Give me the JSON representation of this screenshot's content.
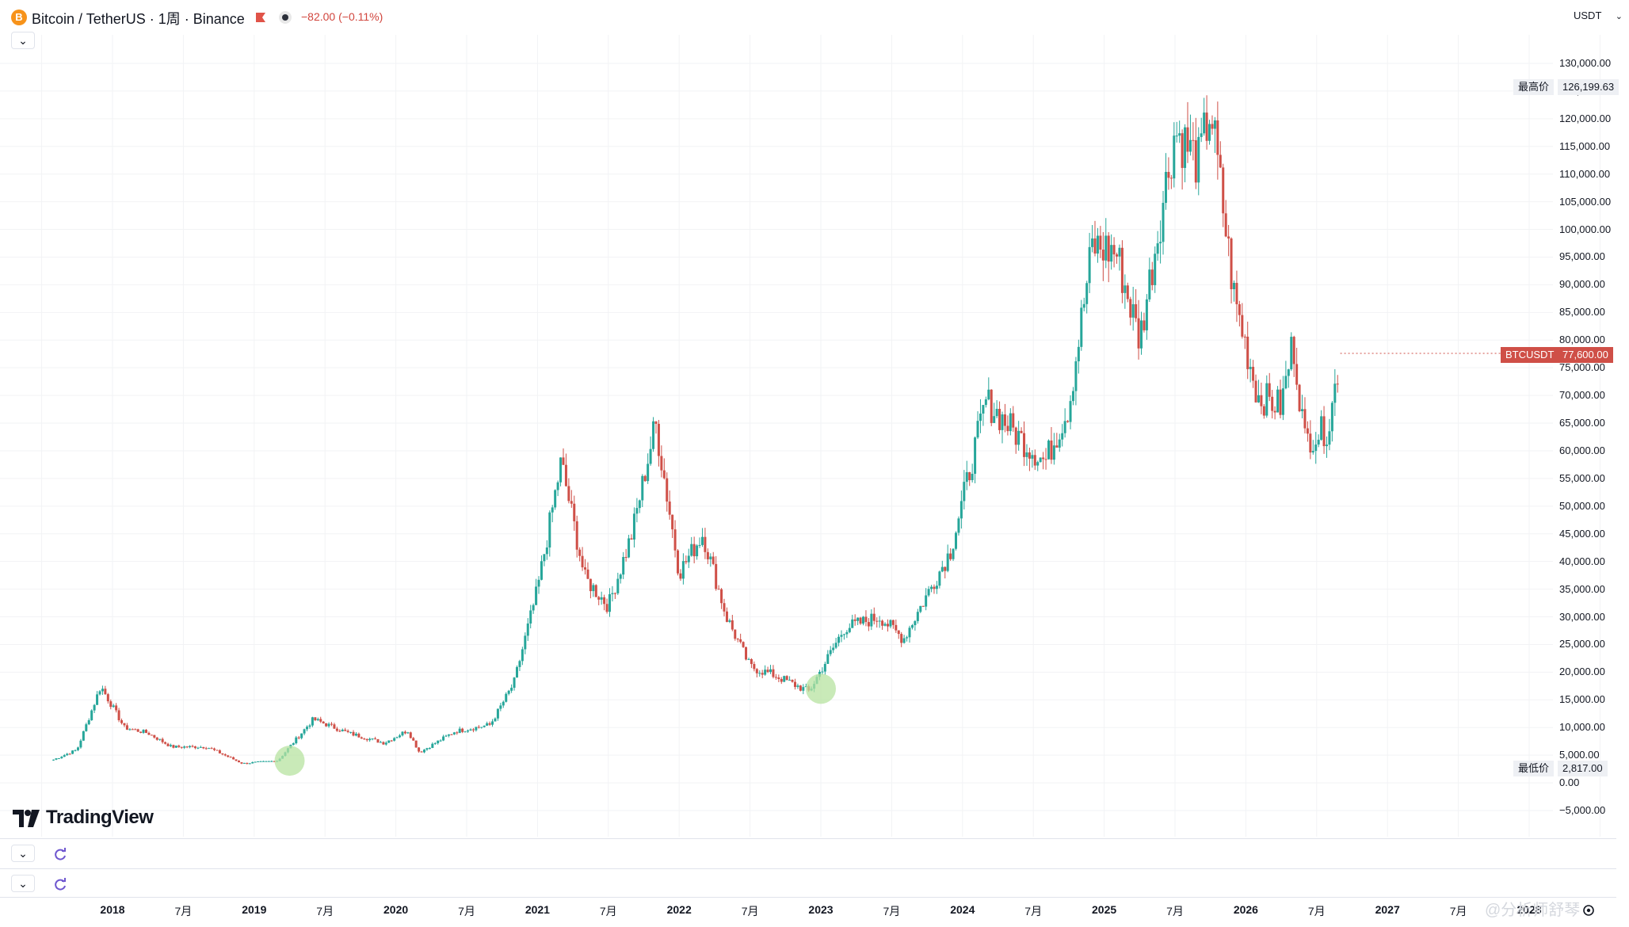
{
  "header": {
    "coin_letter": "B",
    "symbol_title": "Bitcoin / TetherUS · 1周 · Binance",
    "price_change": "−82.00 (−0.11%)",
    "currency": "USDT"
  },
  "price_labels": {
    "high_name": "最高价",
    "high_value": "126,199.63",
    "low_name": "最低价",
    "low_value": "2,817.00",
    "current_symbol": "BTCUSDT",
    "current_value": "77,600.00"
  },
  "brand": {
    "logo_text": "TradingView"
  },
  "watermark": "@分析师舒琴",
  "colors": {
    "up": "#26a69a",
    "down": "#cf4f47",
    "highlight": "#b7e3a0"
  },
  "chart_data": {
    "type": "candlestick",
    "y_unit": "USDT",
    "ylim": [
      -5000,
      130000
    ],
    "y_ticks": [
      "130,000.00",
      "125,000.00",
      "120,000.00",
      "115,000.00",
      "110,000.00",
      "105,000.00",
      "100,000.00",
      "95,000.00",
      "90,000.00",
      "85,000.00",
      "80,000.00",
      "75,000.00",
      "70,000.00",
      "65,000.00",
      "60,000.00",
      "55,000.00",
      "50,000.00",
      "45,000.00",
      "40,000.00",
      "35,000.00",
      "30,000.00",
      "25,000.00",
      "20,000.00",
      "15,000.00",
      "10,000.00",
      "5,000.00",
      "0.00",
      "−5,000.00"
    ],
    "x_ticks": [
      "2018",
      "7月",
      "2019",
      "7月",
      "2020",
      "7月",
      "2021",
      "7月",
      "2022",
      "7月",
      "2023",
      "7月",
      "2024",
      "7月",
      "2025",
      "7月",
      "2026",
      "7月",
      "2027",
      "7月",
      "2028"
    ],
    "price_path": [
      [
        "2017-08",
        4200
      ],
      [
        "2017-10",
        6000
      ],
      [
        "2017-12",
        17500
      ],
      [
        "2018-02",
        10000
      ],
      [
        "2018-04",
        9000
      ],
      [
        "2018-06",
        6500
      ],
      [
        "2018-09",
        6500
      ],
      [
        "2018-12",
        3500
      ],
      [
        "2019-03",
        4000
      ],
      [
        "2019-06",
        11500
      ],
      [
        "2019-09",
        9000
      ],
      [
        "2019-12",
        7200
      ],
      [
        "2020-02",
        9500
      ],
      [
        "2020-03",
        5500
      ],
      [
        "2020-06",
        9300
      ],
      [
        "2020-09",
        10500
      ],
      [
        "2020-11",
        18000
      ],
      [
        "2021-01",
        35000
      ],
      [
        "2021-03",
        58000
      ],
      [
        "2021-05",
        37000
      ],
      [
        "2021-07",
        32000
      ],
      [
        "2021-09",
        45000
      ],
      [
        "2021-11",
        65000
      ],
      [
        "2022-01",
        38000
      ],
      [
        "2022-03",
        45000
      ],
      [
        "2022-05",
        30000
      ],
      [
        "2022-07",
        21000
      ],
      [
        "2022-09",
        19500
      ],
      [
        "2022-12",
        16500
      ],
      [
        "2023-03",
        28000
      ],
      [
        "2023-06",
        30000
      ],
      [
        "2023-08",
        26000
      ],
      [
        "2023-10",
        34000
      ],
      [
        "2023-12",
        42000
      ],
      [
        "2024-03",
        69000
      ],
      [
        "2024-06",
        62000
      ],
      [
        "2024-08",
        58000
      ],
      [
        "2024-10",
        68000
      ],
      [
        "2024-12",
        97000
      ],
      [
        "2025-02",
        96000
      ],
      [
        "2025-04",
        80000
      ],
      [
        "2025-07",
        118000
      ],
      [
        "2025-09",
        112000
      ],
      [
        "2025-10",
        122000
      ],
      [
        "2025-12",
        88000
      ],
      [
        "2026-02",
        70000
      ],
      [
        "2026-04",
        68000
      ],
      [
        "2026-05",
        80000
      ],
      [
        "2026-06",
        62000
      ],
      [
        "2026-08",
        64000
      ],
      [
        "2026-09",
        77600
      ]
    ],
    "highlighted_points": [
      [
        "2019-04",
        4000
      ],
      [
        "2023-01",
        17000
      ]
    ],
    "series_high": 126199.63,
    "series_low": 2817.0,
    "last_price": 77600.0
  }
}
